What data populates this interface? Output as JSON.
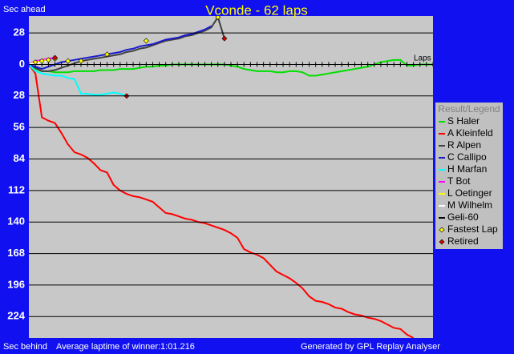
{
  "chart_data": {
    "type": "line",
    "title": "Vconde - 62 laps",
    "y_label_top": "Sec ahead",
    "y_label_bottom": "Sec behind",
    "x_label": "Laps",
    "footer_left": "Average laptime of winner:1:01.216",
    "footer_right": "Generated by GPL Replay Analyser",
    "legend_title": "Result/Legend",
    "legend": "right",
    "grid": true,
    "xlim": [
      0,
      62
    ],
    "ylim": [
      -243,
      43
    ],
    "yticks": [
      28,
      0,
      {
        "value": -28,
        "label": "28"
      },
      {
        "value": -56,
        "label": "56"
      },
      {
        "value": -84,
        "label": "84"
      },
      {
        "value": -112,
        "label": "112"
      },
      {
        "value": -140,
        "label": "140"
      },
      {
        "value": -168,
        "label": "168"
      },
      {
        "value": -196,
        "label": "196"
      },
      {
        "value": -224,
        "label": "224"
      }
    ],
    "x": [
      0,
      1,
      2,
      3,
      4,
      5,
      6,
      7,
      8,
      9,
      10,
      11,
      12,
      13,
      14,
      15,
      16,
      17,
      18,
      19,
      20,
      21,
      22,
      23,
      24,
      25,
      26,
      27,
      28,
      29,
      30,
      31,
      32,
      33,
      34,
      35,
      36,
      37,
      38,
      39,
      40,
      41,
      42,
      43,
      44,
      45,
      46,
      47,
      48,
      49,
      50,
      51,
      52,
      53,
      54,
      55,
      56,
      57,
      58,
      59,
      60,
      61,
      62
    ],
    "series": [
      {
        "name": "S Haler",
        "color": "#00e000",
        "values": [
          0,
          -4,
          -6,
          -6,
          -7,
          -7,
          -7,
          -6,
          -6,
          -6,
          -6,
          -5,
          -5,
          -5,
          -4,
          -4,
          -4,
          -3,
          -2,
          -2,
          -1,
          -1,
          0,
          0,
          0,
          0,
          0,
          0,
          0,
          0,
          0,
          -1,
          -2,
          -4,
          -5,
          -6,
          -6,
          -6,
          -7,
          -7,
          -6,
          -6,
          -7,
          -10,
          -10,
          -9,
          -8,
          -7,
          -6,
          -5,
          -4,
          -3,
          -2,
          0,
          2,
          3,
          4,
          4,
          -1,
          -1,
          0,
          0,
          0
        ]
      },
      {
        "name": "A Kleinfeld",
        "color": "#ff0000",
        "values": [
          0,
          -8,
          -47,
          -50,
          -52,
          -61,
          -71,
          -78,
          -80,
          -83,
          -88,
          -94,
          -96,
          -107,
          -112,
          -115,
          -117,
          -118,
          -120,
          -122,
          -127,
          -132,
          -133,
          -135,
          -137,
          -138,
          -140,
          -141,
          -143,
          -145,
          -147,
          -150,
          -154,
          -164,
          -167,
          -169,
          -172,
          -178,
          -184,
          -187,
          -190,
          -194,
          -199,
          -206,
          -210,
          -211,
          -213,
          -216,
          -217,
          -220,
          -222,
          -223,
          -225,
          -226,
          -228,
          -231,
          -234,
          -235,
          -240,
          -243,
          null,
          null,
          null
        ]
      },
      {
        "name": "R Alpen",
        "color": "#404040",
        "values": [
          0,
          -3,
          -6,
          -6,
          -5,
          -3,
          -1,
          1,
          3,
          4,
          5,
          6,
          7,
          8,
          9,
          11,
          12,
          14,
          15,
          17,
          19,
          21,
          22,
          23,
          25,
          26,
          28,
          30,
          33,
          42,
          23,
          null,
          null,
          null,
          null,
          null,
          null,
          null,
          null,
          null,
          null,
          null,
          null,
          null,
          null,
          null,
          null,
          null,
          null,
          null,
          null,
          null,
          null,
          null,
          null,
          null,
          null,
          null,
          null,
          null,
          null,
          null,
          null
        ]
      },
      {
        "name": "C Callipo",
        "color": "#1a1ad0",
        "values": [
          0,
          -2,
          -4,
          -2,
          0,
          2,
          3,
          4,
          5,
          6,
          7,
          8,
          9,
          10,
          11,
          13,
          14,
          16,
          17,
          18,
          20,
          22,
          23,
          24,
          26,
          27,
          29,
          31,
          34,
          null,
          null,
          null,
          null,
          null,
          null,
          null,
          null,
          null,
          null,
          null,
          null,
          null,
          null,
          null,
          null,
          null,
          null,
          null,
          null,
          null,
          null,
          null,
          null,
          null,
          null,
          null,
          null,
          null,
          null,
          null,
          null,
          null,
          null
        ]
      },
      {
        "name": "H Marfan",
        "color": "#00ffff",
        "values": [
          0,
          -6,
          -8,
          -9,
          -10,
          -10,
          -12,
          -13,
          -26,
          -26,
          -27,
          -27,
          -26,
          -25,
          -26,
          -28,
          null,
          null,
          null,
          null,
          null,
          null,
          null,
          null,
          null,
          null,
          null,
          null,
          null,
          null,
          null,
          null,
          null,
          null,
          null,
          null,
          null,
          null,
          null,
          null,
          null,
          null,
          null,
          null,
          null,
          null,
          null,
          null,
          null,
          null,
          null,
          null,
          null,
          null,
          null,
          null,
          null,
          null,
          null,
          null,
          null,
          null,
          null
        ]
      },
      {
        "name": "T Bot",
        "color": "#ff00ff",
        "values": [
          0,
          3,
          4,
          5,
          6,
          null,
          null,
          null,
          null,
          null,
          null,
          null,
          null,
          null,
          null,
          null,
          null,
          null,
          null,
          null,
          null,
          null,
          null,
          null,
          null,
          null,
          null,
          null,
          null,
          null,
          null,
          null,
          null,
          null,
          null,
          null,
          null,
          null,
          null,
          null,
          null,
          null,
          null,
          null,
          null,
          null,
          null,
          null,
          null,
          null,
          null,
          null,
          null,
          null,
          null,
          null,
          null,
          null,
          null,
          null,
          null,
          null,
          null
        ]
      },
      {
        "name": "L Oetinger",
        "color": "#ffff00",
        "values": [
          0,
          2,
          3,
          4,
          null,
          null,
          null,
          null,
          null,
          null,
          null,
          null,
          null,
          null,
          null,
          null,
          null,
          null,
          null,
          null,
          null,
          null,
          null,
          null,
          null,
          null,
          null,
          null,
          null,
          null,
          null,
          null,
          null,
          null,
          null,
          null,
          null,
          null,
          null,
          null,
          null,
          null,
          null,
          null,
          null,
          null,
          null,
          null,
          null,
          null,
          null,
          null,
          null,
          null,
          null,
          null,
          null,
          null,
          null,
          null,
          null,
          null,
          null
        ]
      },
      {
        "name": "M Wilhelm",
        "color": "#ffffff",
        "values": [
          0,
          1,
          2,
          3,
          null,
          null,
          null,
          null,
          null,
          null,
          null,
          null,
          null,
          null,
          null,
          null,
          null,
          null,
          null,
          null,
          null,
          null,
          null,
          null,
          null,
          null,
          null,
          null,
          null,
          null,
          null,
          null,
          null,
          null,
          null,
          null,
          null,
          null,
          null,
          null,
          null,
          null,
          null,
          null,
          null,
          null,
          null,
          null,
          null,
          null,
          null,
          null,
          null,
          null,
          null,
          null,
          null,
          null,
          null,
          null,
          null,
          null,
          null
        ]
      },
      {
        "name": "Geli-60",
        "color": "#000000",
        "values": [
          0,
          0,
          0,
          0,
          0,
          0,
          0,
          0,
          0,
          0,
          0,
          0,
          0,
          0,
          0,
          0,
          0,
          0,
          0,
          0,
          0,
          0,
          0,
          0,
          0,
          0,
          0,
          0,
          0,
          0,
          0,
          0,
          0,
          0,
          0,
          0,
          0,
          0,
          0,
          0,
          0,
          0,
          0,
          0,
          0,
          0,
          0,
          0,
          0,
          0,
          0,
          0,
          0,
          0,
          0,
          0,
          0,
          0,
          0,
          0,
          0,
          0,
          0
        ]
      }
    ],
    "markers": [
      {
        "name": "Fastest Lap",
        "color": "#ffff00",
        "x": [
          1,
          2,
          3,
          4,
          6,
          8,
          12,
          18,
          29
        ],
        "values": [
          2,
          3,
          4,
          5,
          3,
          3,
          9,
          21,
          42
        ]
      },
      {
        "name": "Retired",
        "color": "#e00000",
        "x": [
          4,
          15,
          30
        ],
        "values": [
          6,
          -28,
          23
        ]
      }
    ]
  }
}
